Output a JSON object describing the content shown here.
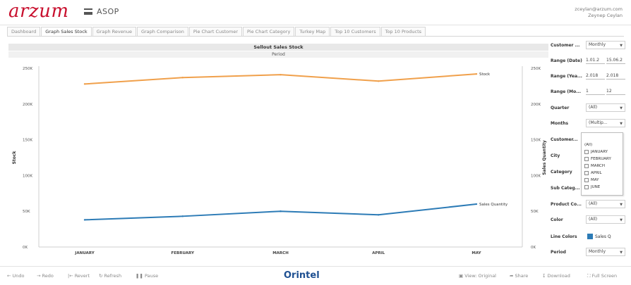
{
  "header": {
    "logo": "arzum",
    "app_title": "ASOP",
    "user_email": "zceylan@arzum.com",
    "user_name": "Zeynep Ceylan"
  },
  "tabs": [
    {
      "label": "Dashboard",
      "active": false
    },
    {
      "label": "Graph Sales  Stock",
      "active": true
    },
    {
      "label": "Graph Revenue",
      "active": false
    },
    {
      "label": "Graph Comparison",
      "active": false
    },
    {
      "label": "Pie Chart Customer",
      "active": false
    },
    {
      "label": "Pie Chart Category",
      "active": false
    },
    {
      "label": "Turkey Map",
      "active": false
    },
    {
      "label": "Top 10 Customers",
      "active": false
    },
    {
      "label": "Top 10 Products",
      "active": false
    }
  ],
  "chart_data": {
    "type": "line",
    "title": "Sellout Sales  Stock",
    "subtitle": "Period",
    "categories": [
      "JANUARY",
      "FEBRUARY",
      "MARCH",
      "APRIL",
      "MAY"
    ],
    "ylabel_left": "Stock",
    "ylabel_right": "Sales Quantity",
    "ylim": [
      0,
      250000
    ],
    "yticks_left": [
      "250K",
      "200K",
      "150K",
      "100K",
      "50K",
      "0K"
    ],
    "yticks_right": [
      "250K",
      "200K",
      "150K",
      "100K",
      "50K",
      "0K"
    ],
    "series": [
      {
        "name": "Stock",
        "color": "#f0a04b",
        "values": [
          228000,
          237000,
          241000,
          232000,
          242000
        ]
      },
      {
        "name": "Sales Quantity",
        "color": "#2c7bb6",
        "values": [
          38000,
          43000,
          50000,
          45000,
          60000
        ]
      }
    ]
  },
  "panel": {
    "rows": [
      {
        "label": "Customer ...",
        "type": "select",
        "value": "Monthly"
      },
      {
        "label": "Range (Date)",
        "type": "range",
        "from": "1.01.2",
        "to": "15.06.2"
      },
      {
        "label": "Range (Yea...",
        "type": "range",
        "from": "2.018",
        "to": "2.018"
      },
      {
        "label": "Range (Mo...",
        "type": "range",
        "from": "1",
        "to": "12"
      },
      {
        "label": "Quarter",
        "type": "select",
        "value": "(All)"
      },
      {
        "label": "Months",
        "type": "select",
        "value": "(Multip..."
      },
      {
        "label": "Customer...",
        "type": "none",
        "value": ""
      },
      {
        "label": "City",
        "type": "none",
        "value": ""
      },
      {
        "label": "Category",
        "type": "none",
        "value": ""
      },
      {
        "label": "Sub Categ...",
        "type": "none",
        "value": ""
      },
      {
        "label": "Product Co...",
        "type": "select",
        "value": "(All)"
      },
      {
        "label": "Color",
        "type": "select",
        "value": "(All)"
      },
      {
        "label": "Line Colors",
        "type": "legend",
        "value": "Sales Q"
      },
      {
        "label": "Period",
        "type": "select",
        "value": "Monthly"
      }
    ],
    "months_dropdown": [
      "(All)",
      "JANUARY",
      "FEBRUARY",
      "MARCH",
      "APRIL",
      "MAY",
      "JUNE"
    ]
  },
  "footer": {
    "undo": "Undo",
    "redo": "Redo",
    "revert": "Revert",
    "refresh": "Refresh",
    "pause": "Pause",
    "brand": "Orintel",
    "view_original": "View: Original",
    "share": "Share",
    "download": "Download",
    "full_screen": "Full Screen"
  }
}
